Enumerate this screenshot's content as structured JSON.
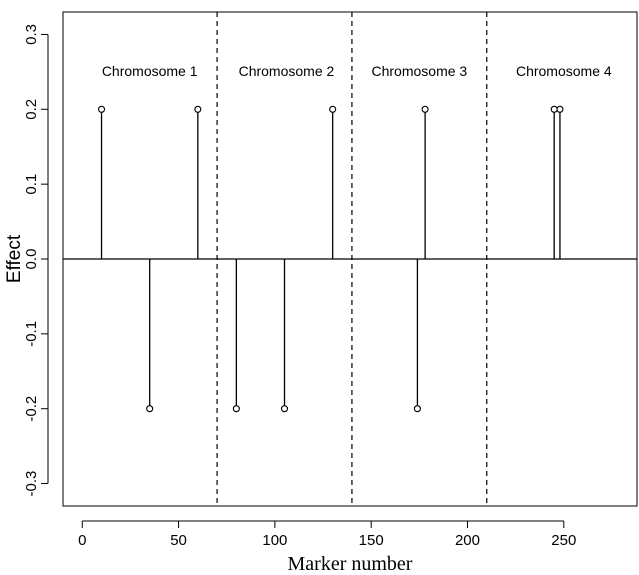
{
  "chart_data": {
    "type": "stem",
    "title": "",
    "xlabel": "Marker number",
    "ylabel": "Effect",
    "xlim": [
      -10,
      288
    ],
    "ylim": [
      -0.33,
      0.33
    ],
    "x_ticks": [
      0,
      50,
      100,
      150,
      200,
      250
    ],
    "y_ticks": [
      -0.3,
      -0.2,
      -0.1,
      0.0,
      0.1,
      0.2,
      0.3
    ],
    "y_tick_labels": [
      "-0.3",
      "-0.2",
      "-0.1",
      "0.0",
      "0.1",
      "0.2",
      "0.3"
    ],
    "baseline": 0.0,
    "dividers": [
      70,
      140,
      210
    ],
    "regions": [
      {
        "label": "Chromosome 1",
        "x": 35
      },
      {
        "label": "Chromosome 2",
        "x": 106
      },
      {
        "label": "Chromosome 3",
        "x": 175
      },
      {
        "label": "Chromosome 4",
        "x": 250
      }
    ],
    "points": [
      {
        "x": 10,
        "y": 0.2
      },
      {
        "x": 35,
        "y": -0.2
      },
      {
        "x": 60,
        "y": 0.2
      },
      {
        "x": 80,
        "y": -0.2
      },
      {
        "x": 105,
        "y": -0.2
      },
      {
        "x": 130,
        "y": 0.2
      },
      {
        "x": 174,
        "y": -0.2
      },
      {
        "x": 178,
        "y": 0.2
      },
      {
        "x": 245,
        "y": 0.2
      },
      {
        "x": 248,
        "y": 0.2
      }
    ],
    "grid": false
  }
}
